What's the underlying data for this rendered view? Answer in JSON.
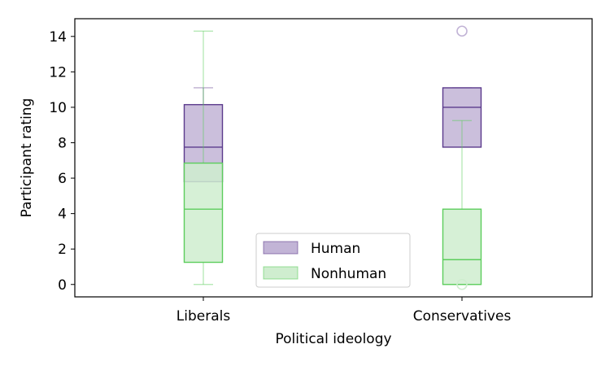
{
  "chart_data": {
    "type": "box",
    "xlabel": "Political ideology",
    "ylabel": "Participant rating",
    "ylim": [
      -0.7,
      15.0
    ],
    "yticks": [
      0,
      2,
      4,
      6,
      8,
      10,
      12,
      14
    ],
    "categories": [
      "Liberals",
      "Conservatives"
    ],
    "legend_position": "lower center",
    "series": [
      {
        "name": "Human",
        "color": "#5b3a8c",
        "fill": "#c2b4d6",
        "boxes": [
          {
            "category": "Liberals",
            "whisker_low": 5.8,
            "q1": 5.8,
            "median": 7.75,
            "q3": 10.15,
            "whisker_high": 11.1,
            "outliers": []
          },
          {
            "category": "Conservatives",
            "whisker_low": 7.75,
            "q1": 7.75,
            "median": 10.0,
            "q3": 11.1,
            "whisker_high": 11.1,
            "outliers": [
              14.3
            ]
          }
        ]
      },
      {
        "name": "Nonhuman",
        "color": "#5ccd5c",
        "fill": "#cfedcf",
        "boxes": [
          {
            "category": "Liberals",
            "whisker_low": 0.0,
            "q1": 1.25,
            "median": 4.25,
            "q3": 6.85,
            "whisker_high": 14.3,
            "outliers": []
          },
          {
            "category": "Conservatives",
            "whisker_low": 0.0,
            "q1": 0.0,
            "median": 1.4,
            "q3": 4.25,
            "whisker_high": 9.25,
            "outliers": [
              0.0
            ]
          }
        ]
      }
    ]
  }
}
